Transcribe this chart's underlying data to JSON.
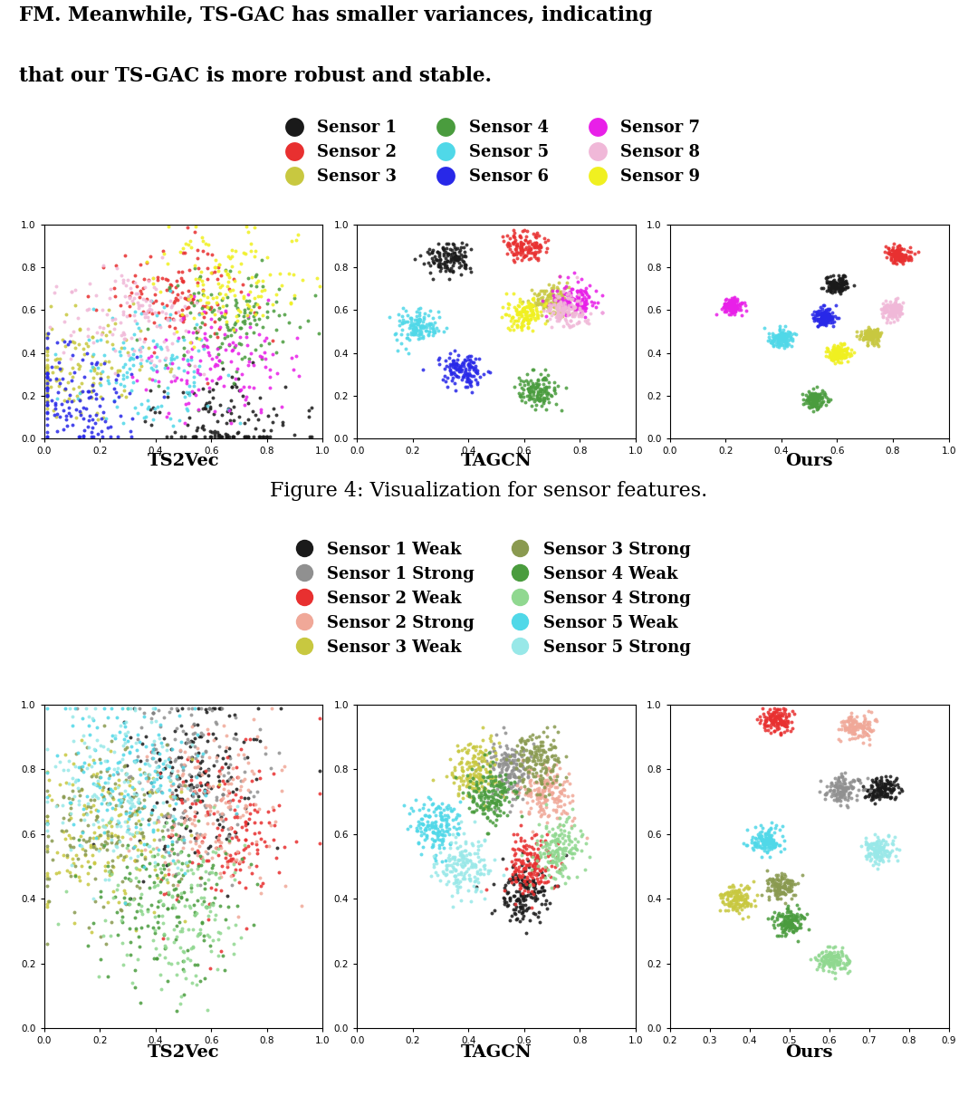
{
  "top_text_line1": "FM. Meanwhile, TS-GAC has smaller variances, indicating",
  "top_text_line2": "that our TS-GAC is more robust and stable.",
  "figure_caption": "Figure 4: Visualization for sensor features.",
  "sensor_colors_9": [
    "#1a1a1a",
    "#e83030",
    "#c8c840",
    "#4a9c3e",
    "#50d8e8",
    "#2828e8",
    "#e820e8",
    "#f0b8d8",
    "#f0f020"
  ],
  "sensor_labels_9": [
    "Sensor 1",
    "Sensor 2",
    "Sensor 3",
    "Sensor 4",
    "Sensor 5",
    "Sensor 6",
    "Sensor 7",
    "Sensor 8",
    "Sensor 9"
  ],
  "sensor_colors_weak": [
    "#1a1a1a",
    "#e83030",
    "#c8c840",
    "#4a9c3e",
    "#50d8e8"
  ],
  "sensor_colors_strong": [
    "#909090",
    "#f0a898",
    "#8a9a50",
    "#90d890",
    "#98e8e8"
  ],
  "sensor_labels_weak": [
    "Sensor 1 Weak",
    "Sensor 2 Weak",
    "Sensor 3 Weak",
    "Sensor 4 Weak",
    "Sensor 5 Weak"
  ],
  "sensor_labels_strong": [
    "Sensor 1 Strong",
    "Sensor 2 Strong",
    "Sensor 3 Strong",
    "Sensor 4 Strong",
    "Sensor 5 Strong"
  ],
  "subplot_titles_top": [
    "TS2Vec",
    "TAGCN",
    "Ours"
  ],
  "subplot_titles_bottom": [
    "TS2Vec",
    "TAGCN",
    "Ours"
  ]
}
